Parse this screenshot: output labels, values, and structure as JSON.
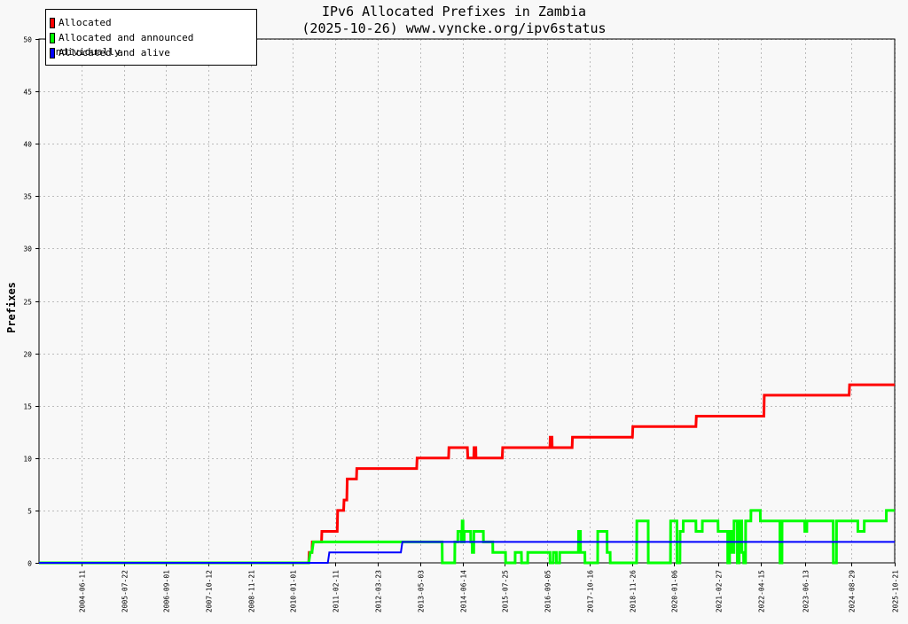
{
  "chart_data": {
    "type": "line",
    "title": "IPv6 Allocated Prefixes in Zambia",
    "subtitle": "(2025-10-26) www.vyncke.org/ipv6status",
    "ylabel": "Prefixes",
    "ylim": [
      0,
      50
    ],
    "yticks": [
      0,
      5,
      10,
      15,
      20,
      25,
      30,
      35,
      40,
      45,
      50
    ],
    "xlim": [
      "2003-05-01",
      "2025-10-21"
    ],
    "xticks": [
      "2004-06-11",
      "2005-07-22",
      "2006-09-01",
      "2007-10-12",
      "2008-11-21",
      "2010-01-01",
      "2011-02-11",
      "2012-03-23",
      "2013-05-03",
      "2014-06-14",
      "2015-07-25",
      "2016-09-05",
      "2017-10-16",
      "2018-11-26",
      "2020-01-06",
      "2021-02-27",
      "2022-04-15",
      "2023-06-13",
      "2024-08-29",
      "2025-10-21"
    ],
    "grid": true,
    "legend_position": "top-left",
    "series": [
      {
        "name": "Allocated",
        "color": "#ff0000",
        "points": [
          [
            "2003-05-01",
            0
          ],
          [
            "2010-06-01",
            0
          ],
          [
            "2010-06-05",
            1
          ],
          [
            "2010-07-01",
            1
          ],
          [
            "2010-07-05",
            2
          ],
          [
            "2010-10-01",
            2
          ],
          [
            "2010-10-05",
            3
          ],
          [
            "2011-03-01",
            3
          ],
          [
            "2011-03-05",
            5
          ],
          [
            "2011-05-01",
            5
          ],
          [
            "2011-05-05",
            6
          ],
          [
            "2011-06-01",
            6
          ],
          [
            "2011-06-05",
            8
          ],
          [
            "2011-09-01",
            8
          ],
          [
            "2011-09-05",
            9
          ],
          [
            "2013-04-01",
            9
          ],
          [
            "2013-04-05",
            10
          ],
          [
            "2014-02-01",
            10
          ],
          [
            "2014-02-05",
            11
          ],
          [
            "2014-08-01",
            11
          ],
          [
            "2014-08-05",
            10
          ],
          [
            "2014-10-01",
            10
          ],
          [
            "2014-10-03",
            11
          ],
          [
            "2014-10-20",
            11
          ],
          [
            "2014-10-22",
            10
          ],
          [
            "2015-07-01",
            10
          ],
          [
            "2015-07-05",
            11
          ],
          [
            "2016-10-01",
            11
          ],
          [
            "2016-10-03",
            12
          ],
          [
            "2016-10-20",
            12
          ],
          [
            "2016-10-22",
            11
          ],
          [
            "2017-05-01",
            11
          ],
          [
            "2017-05-05",
            12
          ],
          [
            "2018-12-01",
            12
          ],
          [
            "2018-12-05",
            13
          ],
          [
            "2020-08-01",
            13
          ],
          [
            "2020-08-05",
            14
          ],
          [
            "2022-05-15",
            14
          ],
          [
            "2022-05-19",
            16
          ],
          [
            "2024-08-10",
            16
          ],
          [
            "2024-08-14",
            17
          ],
          [
            "2025-10-21",
            17
          ]
        ]
      },
      {
        "name": "Allocated and announced individually",
        "color": "#00ff00",
        "points": [
          [
            "2003-05-01",
            0
          ],
          [
            "2010-06-01",
            0
          ],
          [
            "2010-06-15",
            1
          ],
          [
            "2010-07-01",
            1
          ],
          [
            "2010-07-15",
            2
          ],
          [
            "2013-04-01",
            2
          ],
          [
            "2013-04-05",
            2
          ],
          [
            "2013-12-01",
            2
          ],
          [
            "2013-12-03",
            0
          ],
          [
            "2014-04-01",
            0
          ],
          [
            "2014-04-03",
            2
          ],
          [
            "2014-05-01",
            2
          ],
          [
            "2014-05-02",
            3
          ],
          [
            "2014-06-01",
            3
          ],
          [
            "2014-06-02",
            2
          ],
          [
            "2014-06-10",
            2
          ],
          [
            "2014-06-11",
            4
          ],
          [
            "2014-06-20",
            4
          ],
          [
            "2014-06-21",
            2
          ],
          [
            "2014-07-01",
            2
          ],
          [
            "2014-07-02",
            3
          ],
          [
            "2014-09-01",
            3
          ],
          [
            "2014-09-02",
            2
          ],
          [
            "2014-09-15",
            2
          ],
          [
            "2014-09-16",
            1
          ],
          [
            "2014-10-01",
            1
          ],
          [
            "2014-10-02",
            3
          ],
          [
            "2015-01-01",
            3
          ],
          [
            "2015-01-02",
            2
          ],
          [
            "2015-04-01",
            2
          ],
          [
            "2015-04-02",
            1
          ],
          [
            "2015-08-01",
            1
          ],
          [
            "2015-08-02",
            0
          ],
          [
            "2015-11-01",
            0
          ],
          [
            "2015-11-02",
            1
          ],
          [
            "2016-01-01",
            1
          ],
          [
            "2016-01-02",
            0
          ],
          [
            "2016-03-01",
            0
          ],
          [
            "2016-03-02",
            1
          ],
          [
            "2016-10-01",
            1
          ],
          [
            "2016-10-02",
            0
          ],
          [
            "2016-11-01",
            0
          ],
          [
            "2016-11-02",
            1
          ],
          [
            "2016-12-01",
            1
          ],
          [
            "2016-12-02",
            0
          ],
          [
            "2017-01-01",
            0
          ],
          [
            "2017-01-02",
            1
          ],
          [
            "2017-07-01",
            1
          ],
          [
            "2017-07-02",
            3
          ],
          [
            "2017-07-20",
            3
          ],
          [
            "2017-07-21",
            1
          ],
          [
            "2017-09-01",
            1
          ],
          [
            "2017-09-02",
            0
          ],
          [
            "2018-01-01",
            0
          ],
          [
            "2018-01-02",
            3
          ],
          [
            "2018-04-01",
            3
          ],
          [
            "2018-04-02",
            1
          ],
          [
            "2018-05-01",
            1
          ],
          [
            "2018-05-02",
            0
          ],
          [
            "2019-01-10",
            0
          ],
          [
            "2019-01-12",
            4
          ],
          [
            "2019-05-01",
            4
          ],
          [
            "2019-05-02",
            0
          ],
          [
            "2019-12-01",
            0
          ],
          [
            "2019-12-02",
            4
          ],
          [
            "2020-02-01",
            4
          ],
          [
            "2020-02-02",
            0
          ],
          [
            "2020-03-01",
            0
          ],
          [
            "2020-03-02",
            3
          ],
          [
            "2020-04-01",
            3
          ],
          [
            "2020-04-02",
            4
          ],
          [
            "2020-08-01",
            4
          ],
          [
            "2020-08-02",
            3
          ],
          [
            "2020-10-01",
            3
          ],
          [
            "2020-10-02",
            4
          ],
          [
            "2021-03-01",
            4
          ],
          [
            "2021-03-02",
            3
          ],
          [
            "2021-06-01",
            3
          ],
          [
            "2021-06-02",
            0
          ],
          [
            "2021-06-20",
            0
          ],
          [
            "2021-06-21",
            3
          ],
          [
            "2021-07-10",
            3
          ],
          [
            "2021-07-11",
            1
          ],
          [
            "2021-08-01",
            1
          ],
          [
            "2021-08-02",
            4
          ],
          [
            "2021-09-01",
            4
          ],
          [
            "2021-09-02",
            0
          ],
          [
            "2021-09-20",
            0
          ],
          [
            "2021-09-21",
            4
          ],
          [
            "2021-10-15",
            4
          ],
          [
            "2021-10-16",
            1
          ],
          [
            "2021-11-01",
            1
          ],
          [
            "2021-11-02",
            0
          ],
          [
            "2021-11-20",
            0
          ],
          [
            "2021-11-21",
            4
          ],
          [
            "2022-01-10",
            4
          ],
          [
            "2022-01-11",
            5
          ],
          [
            "2022-04-10",
            5
          ],
          [
            "2022-04-11",
            4
          ],
          [
            "2022-10-15",
            4
          ],
          [
            "2022-10-16",
            0
          ],
          [
            "2022-11-05",
            0
          ],
          [
            "2022-11-06",
            4
          ],
          [
            "2023-06-10",
            4
          ],
          [
            "2023-06-11",
            3
          ],
          [
            "2023-07-01",
            3
          ],
          [
            "2023-07-02",
            4
          ],
          [
            "2024-03-10",
            4
          ],
          [
            "2024-03-11",
            0
          ],
          [
            "2024-04-10",
            0
          ],
          [
            "2024-04-11",
            4
          ],
          [
            "2024-11-01",
            4
          ],
          [
            "2024-11-02",
            3
          ],
          [
            "2025-01-01",
            3
          ],
          [
            "2025-01-02",
            4
          ],
          [
            "2025-08-01",
            4
          ],
          [
            "2025-08-02",
            5
          ],
          [
            "2025-10-21",
            5
          ]
        ]
      },
      {
        "name": "Allocated and alive",
        "color": "#0000ff",
        "points": [
          [
            "2003-05-01",
            0
          ],
          [
            "2010-12-01",
            0
          ],
          [
            "2010-12-15",
            1
          ],
          [
            "2012-11-01",
            1
          ],
          [
            "2012-11-15",
            2
          ],
          [
            "2025-10-21",
            2
          ]
        ]
      }
    ]
  }
}
